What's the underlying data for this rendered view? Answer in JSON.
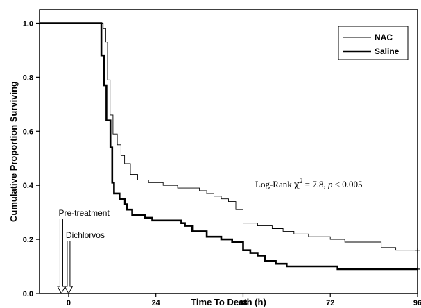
{
  "chart_data": {
    "type": "line",
    "xlabel": "Time To Death  (h)",
    "ylabel": "Cumulative  Proportion  Surviving",
    "xlim": [
      -8,
      96
    ],
    "ylim": [
      0,
      1.05
    ],
    "xticks": [
      0,
      24,
      48,
      72,
      96
    ],
    "yticks": [
      0.0,
      0.2,
      0.4,
      0.6,
      0.8,
      1.0
    ],
    "xtick_labels": [
      "0",
      "24",
      "48",
      "72",
      "96"
    ],
    "ytick_labels": [
      "0.0",
      "0.2",
      "0.4",
      "0.6",
      "0.8",
      "1.0"
    ],
    "legend_position": "top-right",
    "grid": false,
    "annotation": {
      "prefix": "Log-Rank ",
      "chi": "χ",
      "sup": "2",
      "mid": " = 7.8,  ",
      "p": "p",
      "suffix": " < 0.005"
    },
    "markers": [
      {
        "label": "Pre-treatment",
        "x": -2
      },
      {
        "label": "Dichlorvos",
        "x": 0
      }
    ],
    "series": [
      {
        "name": "NAC",
        "style": "thin",
        "censored_at": [
          96
        ],
        "points": [
          [
            -8,
            1.0
          ],
          [
            9.5,
            1.0
          ],
          [
            9.5,
            0.98
          ],
          [
            10.2,
            0.98
          ],
          [
            10.2,
            0.93
          ],
          [
            10.7,
            0.93
          ],
          [
            10.7,
            0.79
          ],
          [
            11.4,
            0.79
          ],
          [
            11.4,
            0.66
          ],
          [
            12.2,
            0.66
          ],
          [
            12.2,
            0.59
          ],
          [
            13.4,
            0.59
          ],
          [
            13.4,
            0.55
          ],
          [
            14.4,
            0.55
          ],
          [
            14.4,
            0.51
          ],
          [
            15.4,
            0.51
          ],
          [
            15.4,
            0.48
          ],
          [
            17,
            0.48
          ],
          [
            17,
            0.44
          ],
          [
            19,
            0.44
          ],
          [
            19,
            0.42
          ],
          [
            22,
            0.42
          ],
          [
            22,
            0.41
          ],
          [
            26,
            0.41
          ],
          [
            26,
            0.4
          ],
          [
            30,
            0.4
          ],
          [
            30,
            0.39
          ],
          [
            36,
            0.39
          ],
          [
            36,
            0.38
          ],
          [
            38,
            0.38
          ],
          [
            38,
            0.37
          ],
          [
            40,
            0.37
          ],
          [
            40,
            0.36
          ],
          [
            42,
            0.36
          ],
          [
            42,
            0.35
          ],
          [
            44,
            0.35
          ],
          [
            44,
            0.34
          ],
          [
            46,
            0.34
          ],
          [
            46,
            0.31
          ],
          [
            48,
            0.31
          ],
          [
            48,
            0.26
          ],
          [
            52,
            0.26
          ],
          [
            52,
            0.25
          ],
          [
            56,
            0.25
          ],
          [
            56,
            0.24
          ],
          [
            59,
            0.24
          ],
          [
            59,
            0.23
          ],
          [
            62,
            0.23
          ],
          [
            62,
            0.22
          ],
          [
            66,
            0.22
          ],
          [
            66,
            0.21
          ],
          [
            72,
            0.21
          ],
          [
            72,
            0.2
          ],
          [
            76,
            0.2
          ],
          [
            76,
            0.19
          ],
          [
            86,
            0.19
          ],
          [
            86,
            0.17
          ],
          [
            90,
            0.17
          ],
          [
            90,
            0.16
          ],
          [
            96,
            0.16
          ]
        ]
      },
      {
        "name": "Saline",
        "style": "thick",
        "censored_at": [
          96
        ],
        "points": [
          [
            -8,
            1.0
          ],
          [
            9.0,
            1.0
          ],
          [
            9.0,
            0.88
          ],
          [
            9.8,
            0.88
          ],
          [
            9.8,
            0.77
          ],
          [
            10.4,
            0.77
          ],
          [
            10.4,
            0.64
          ],
          [
            11.5,
            0.64
          ],
          [
            11.5,
            0.54
          ],
          [
            12.0,
            0.54
          ],
          [
            12.0,
            0.41
          ],
          [
            12.5,
            0.41
          ],
          [
            12.5,
            0.37
          ],
          [
            14,
            0.37
          ],
          [
            14,
            0.35
          ],
          [
            15.5,
            0.35
          ],
          [
            15.5,
            0.33
          ],
          [
            16,
            0.33
          ],
          [
            16,
            0.31
          ],
          [
            17.5,
            0.31
          ],
          [
            17.5,
            0.29
          ],
          [
            21,
            0.29
          ],
          [
            21,
            0.28
          ],
          [
            23,
            0.28
          ],
          [
            23,
            0.27
          ],
          [
            31,
            0.27
          ],
          [
            31,
            0.26
          ],
          [
            32,
            0.26
          ],
          [
            32,
            0.25
          ],
          [
            34,
            0.25
          ],
          [
            34,
            0.23
          ],
          [
            38,
            0.23
          ],
          [
            38,
            0.21
          ],
          [
            42,
            0.21
          ],
          [
            42,
            0.2
          ],
          [
            45,
            0.2
          ],
          [
            45,
            0.19
          ],
          [
            48,
            0.19
          ],
          [
            48,
            0.16
          ],
          [
            50,
            0.16
          ],
          [
            50,
            0.15
          ],
          [
            52,
            0.15
          ],
          [
            52,
            0.14
          ],
          [
            54,
            0.14
          ],
          [
            54,
            0.12
          ],
          [
            57,
            0.12
          ],
          [
            57,
            0.11
          ],
          [
            60,
            0.11
          ],
          [
            60,
            0.1
          ],
          [
            74,
            0.1
          ],
          [
            74,
            0.09
          ],
          [
            96,
            0.09
          ]
        ]
      }
    ]
  }
}
